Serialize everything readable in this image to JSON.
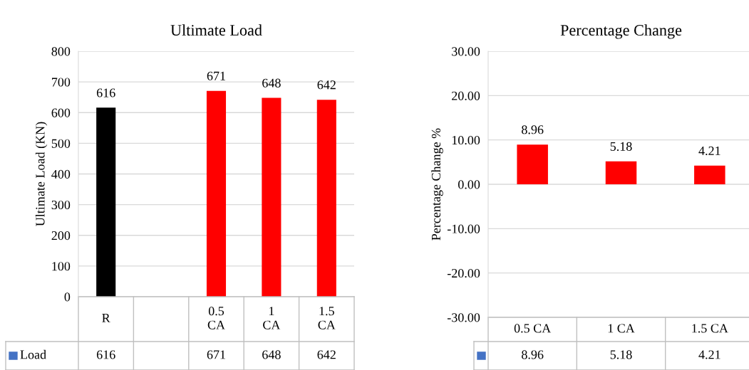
{
  "chart_data": [
    {
      "type": "bar",
      "title": "Ultimate Load",
      "ylabel": "Ultimate Load (KN)",
      "categories": [
        "R",
        null,
        "0.5 CA",
        "1 CA",
        "1.5 CA"
      ],
      "series": [
        {
          "name": "Load",
          "color": "#4472c4",
          "values": [
            616,
            null,
            671,
            648,
            642
          ],
          "colors": [
            "#000000",
            null,
            "#ff0000",
            "#ff0000",
            "#ff0000"
          ]
        }
      ],
      "ylim": [
        0,
        800
      ],
      "yticks": [
        0,
        100,
        200,
        300,
        400,
        500,
        600,
        700,
        800
      ],
      "grid": "y",
      "legend": "bottom",
      "data_labels": true,
      "annotations": [
        "616",
        "671",
        "648",
        "642"
      ]
    },
    {
      "type": "bar",
      "title": "Percentage Change",
      "ylabel": "Percentage Change %",
      "categories": [
        "0.5 CA",
        "1 CA",
        "1.5 CA"
      ],
      "series": [
        {
          "color": "#4472c4",
          "values": [
            8.96,
            5.18,
            4.21
          ],
          "colors": [
            "#ff0000",
            "#ff0000",
            "#ff0000"
          ]
        }
      ],
      "ylim": [
        -30,
        30
      ],
      "yticks": [
        {
          "value": -30,
          "label": "-30.00"
        },
        {
          "value": -20,
          "label": "-20.00"
        },
        {
          "value": -10,
          "label": "-10.00"
        },
        {
          "value": 0,
          "label": "0.00"
        },
        {
          "value": 10,
          "label": "10.00"
        },
        {
          "value": 20,
          "label": "20.00"
        },
        {
          "value": 30,
          "label": "30.00"
        }
      ],
      "grid": "y",
      "data_labels": true,
      "annotations": [
        "8.96",
        "5.18",
        "4.21"
      ]
    }
  ]
}
